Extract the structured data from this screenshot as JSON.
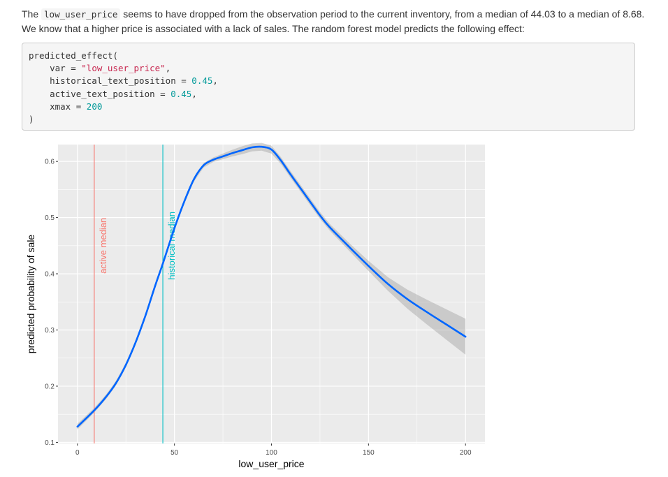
{
  "prose": {
    "part1": "The ",
    "inline_code": "low_user_price",
    "part2": " seems to have dropped from the observation period to the current inventory, from a median of 44.03 to a median of 8.68. We know that a higher price is associated with a lack of sales. The random forest model predicts the following effect:"
  },
  "code": {
    "fn": "predicted_effect(",
    "var_key": "    var = ",
    "var_val": "\"low_user_price\"",
    "var_end": ",",
    "hist_key": "    historical_text_position = ",
    "hist_val": "0.45",
    "hist_end": ",",
    "active_key": "    active_text_position = ",
    "active_val": "0.45",
    "active_end": ",",
    "xmax_key": "    xmax = ",
    "xmax_val": "200",
    "close": ")"
  },
  "chart_data": {
    "type": "line",
    "xlabel": "low_user_price",
    "ylabel": "predicted probability of sale",
    "xlim": [
      -10,
      210
    ],
    "ylim": [
      0.098,
      0.63
    ],
    "x_ticks": [
      0,
      50,
      100,
      150,
      200
    ],
    "y_ticks": [
      0.1,
      0.2,
      0.3,
      0.4,
      0.5,
      0.6
    ],
    "x_tick_labels": [
      "0",
      "50",
      "100",
      "150",
      "200"
    ],
    "y_tick_labels": [
      "0.1",
      "0.2",
      "0.3",
      "0.4",
      "0.5",
      "0.6"
    ],
    "grid": true,
    "series": [
      {
        "x": [
          0,
          8.7,
          15,
          20,
          25,
          30,
          35,
          40,
          44,
          50,
          55,
          60,
          65,
          70,
          75,
          80,
          85,
          90,
          95,
          100,
          105,
          110,
          115,
          120,
          125,
          130,
          140,
          150,
          160,
          170,
          180,
          190,
          200
        ],
        "y": [
          0.128,
          0.157,
          0.182,
          0.206,
          0.238,
          0.278,
          0.325,
          0.378,
          0.418,
          0.481,
          0.528,
          0.568,
          0.593,
          0.603,
          0.609,
          0.615,
          0.62,
          0.625,
          0.626,
          0.621,
          0.601,
          0.576,
          0.552,
          0.528,
          0.504,
          0.483,
          0.448,
          0.414,
          0.382,
          0.355,
          0.332,
          0.31,
          0.288
        ],
        "lower": [
          0.123,
          0.153,
          0.178,
          0.202,
          0.234,
          0.274,
          0.321,
          0.374,
          0.414,
          0.477,
          0.524,
          0.564,
          0.589,
          0.599,
          0.604,
          0.609,
          0.613,
          0.618,
          0.619,
          0.614,
          0.595,
          0.57,
          0.546,
          0.522,
          0.498,
          0.477,
          0.441,
          0.405,
          0.37,
          0.338,
          0.31,
          0.283,
          0.256
        ],
        "upper": [
          0.133,
          0.161,
          0.186,
          0.21,
          0.242,
          0.282,
          0.329,
          0.382,
          0.422,
          0.485,
          0.532,
          0.572,
          0.597,
          0.607,
          0.614,
          0.621,
          0.627,
          0.632,
          0.633,
          0.628,
          0.607,
          0.582,
          0.558,
          0.534,
          0.51,
          0.489,
          0.455,
          0.423,
          0.394,
          0.372,
          0.354,
          0.337,
          0.32
        ]
      }
    ],
    "vlines": [
      {
        "x": 8.68,
        "label": "active median",
        "label_y": 0.45,
        "color": "#f8766d"
      },
      {
        "x": 44.03,
        "label": "historical median",
        "label_y": 0.45,
        "color": "#00bfc4"
      }
    ],
    "colors": {
      "line": "#0066ff",
      "band": "#999999",
      "panel": "#ebebeb",
      "grid": "#ffffff"
    }
  }
}
